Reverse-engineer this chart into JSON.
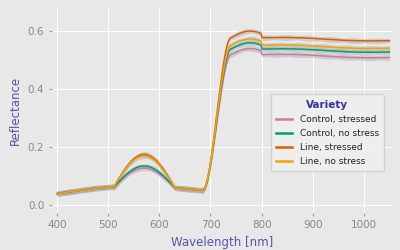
{
  "xlabel": "Wavelength [nm]",
  "ylabel": "Reflectance",
  "xlim": [
    390,
    1055
  ],
  "ylim": [
    -0.025,
    0.68
  ],
  "yticks": [
    0.0,
    0.2,
    0.4,
    0.6
  ],
  "xticks": [
    400,
    500,
    600,
    700,
    800,
    900,
    1000
  ],
  "plot_bg_color": "#e8e8e8",
  "fig_bg_color": "#e8e8e8",
  "legend_title": "Variety",
  "legend_entries": [
    "Control, stressed",
    "Control, no stress",
    "Line, stressed",
    "Line, no stress"
  ],
  "line_colors": [
    "#cc79a7",
    "#009e73",
    "#e05c00",
    "#f0a500"
  ],
  "band_color": "#aaaaaa",
  "band_alpha": 0.45,
  "nir_plateaus": [
    0.518,
    0.537,
    0.576,
    0.55
  ],
  "green_peaks": [
    0.068,
    0.075,
    0.115,
    0.11
  ],
  "axis_label_color": "#5555aa",
  "tick_label_color": "#888888"
}
